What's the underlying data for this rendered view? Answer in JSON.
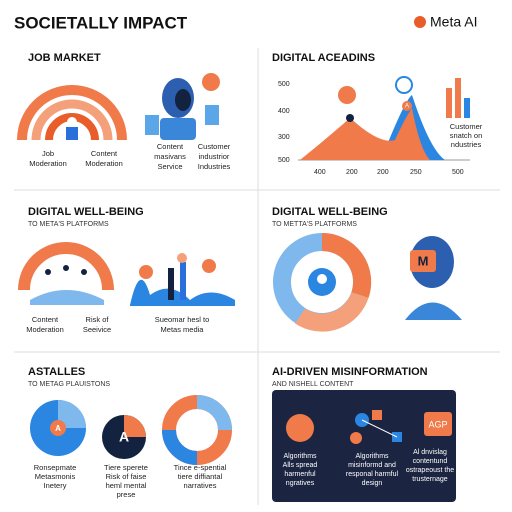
{
  "header": {
    "title": "SOCIETALLY IMPACT",
    "logo": "Meta AI"
  },
  "panels": [
    {
      "title": "JOB MARKET",
      "captions": [
        [
          "Job",
          "Moderation"
        ],
        [
          "Content",
          "Moderation"
        ],
        [
          "Content",
          "masivans",
          "Service"
        ],
        [
          "Customer",
          "industrior",
          "Industries"
        ]
      ]
    },
    {
      "title": "DIGITAL ACEADINS",
      "y_labels": [
        500,
        400,
        300,
        500
      ],
      "x_labels": [
        400,
        200,
        200,
        250,
        500
      ],
      "icon_labels": [
        "A"
      ],
      "captions": [
        [
          "Customer",
          "snatch on",
          "ndustries"
        ]
      ]
    },
    {
      "title": "DIGITAL WELL-BEING",
      "subtitle": "TO META'S PLATFORMS",
      "captions": [
        [
          "Content",
          "Moderation"
        ],
        [
          "Risk of",
          "Seeivice"
        ],
        [
          "Sueomar hesl to",
          "Metas media"
        ]
      ]
    },
    {
      "title": "DIGITAL WELL-BEING",
      "subtitle": "TO METTA'S PLATFORMS",
      "icon_labels": [
        "M"
      ]
    },
    {
      "title": "ASTALLES",
      "subtitle": "TO METAG PLAUISTONS",
      "icon_labels": [
        "A",
        "A"
      ],
      "captions": [
        [
          "Ronsepmate",
          "Metasmonis",
          "Inetery"
        ],
        [
          "Tiere sperete",
          "Risk of faise",
          "heml mental",
          "prese"
        ],
        [
          "Tince e-spential",
          "tiere diffiantal",
          "narratives"
        ]
      ]
    },
    {
      "title": "AI-DRIVEN MISINFORMATION",
      "subtitle": "AND NISHELL CONTENT",
      "icon_labels": [
        "AGP"
      ],
      "captions": [
        [
          "Algorithms",
          "Alls spread",
          "harmenful",
          "ngratives"
        ],
        [
          "Algorithms",
          "misinformd and",
          "responal harmful",
          "design"
        ],
        [
          "Al dnvislag",
          "contentund",
          "ostrapeoust the",
          "trusternage"
        ]
      ]
    }
  ]
}
